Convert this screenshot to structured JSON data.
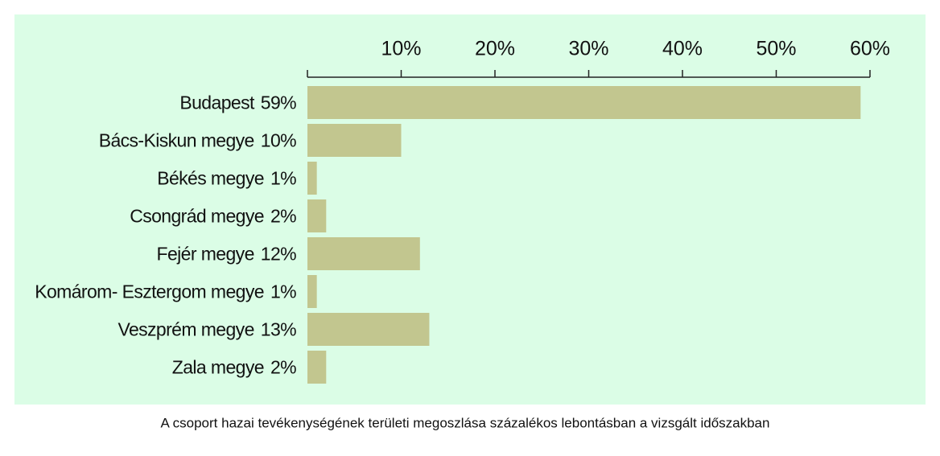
{
  "chart_data": {
    "type": "hbar",
    "title": "A csoport hazai tevékenységének területi megoszlása százalékos lebontásban a vizsgált időszakban",
    "categories": [
      "Budapest",
      "Bács-Kiskun megye",
      "Békés megye",
      "Csongrád megye",
      "Fejér megye",
      "Komárom- Esztergom megye",
      "Veszprém megye",
      "Zala megye"
    ],
    "values": [
      59,
      10,
      1,
      2,
      12,
      1,
      13,
      2
    ],
    "value_labels": [
      "59%",
      "10%",
      "1%",
      "2%",
      "12%",
      "1%",
      "13%",
      "2%"
    ],
    "color": "#c2c68f",
    "xlim": [
      0,
      60
    ],
    "xticks": [
      {
        "value": 10,
        "label": "10%"
      },
      {
        "value": 20,
        "label": "20%"
      },
      {
        "value": 30,
        "label": "30%"
      },
      {
        "value": 40,
        "label": "40%"
      },
      {
        "value": 50,
        "label": "50%"
      },
      {
        "value": 60,
        "label": "60%"
      }
    ]
  }
}
